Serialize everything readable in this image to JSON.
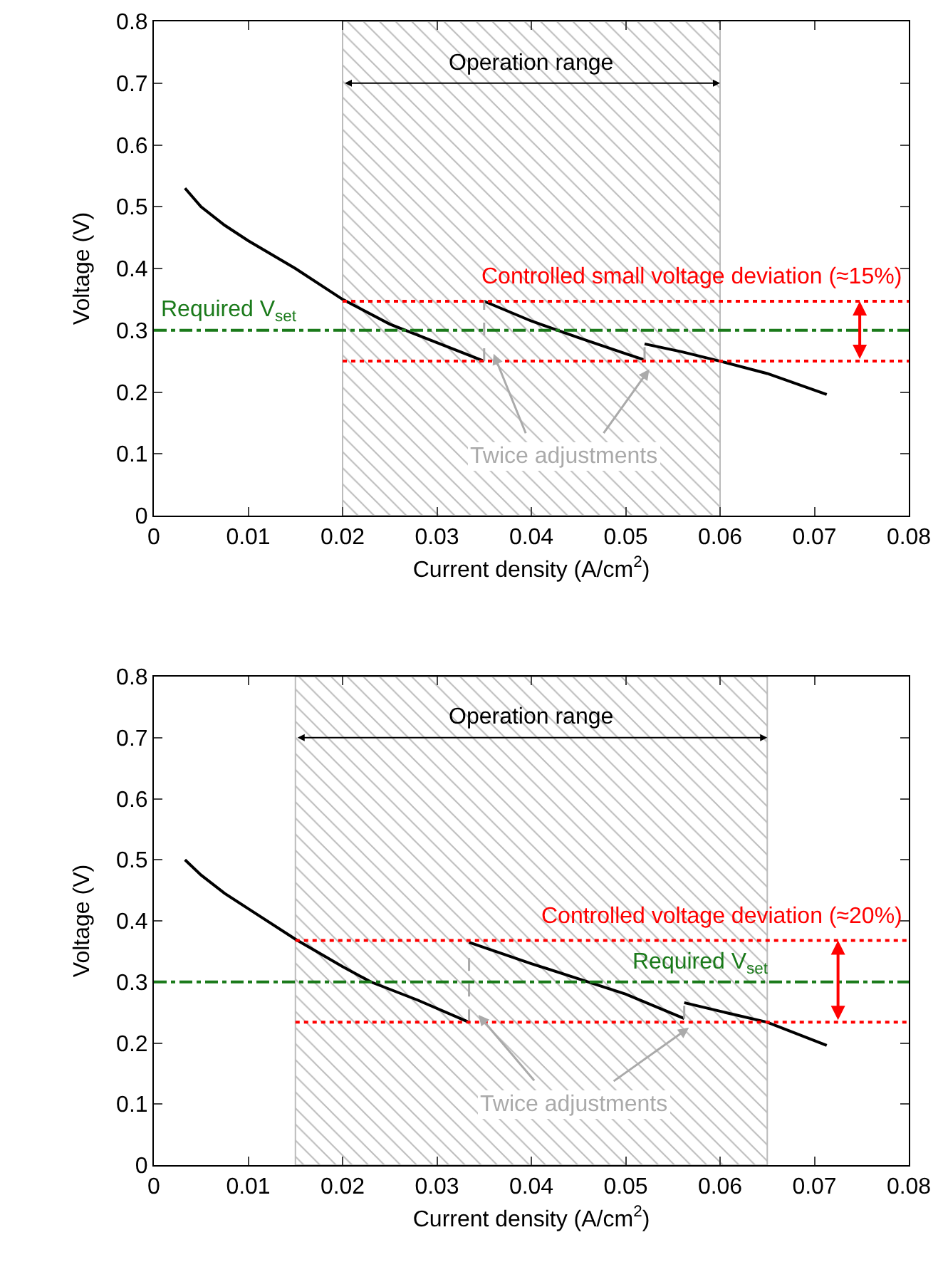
{
  "chart_data": [
    {
      "type": "line",
      "xlabel": "Current density (A/cm$^{2}$)",
      "ylabel": "Voltage (V)",
      "xlim": [
        0,
        0.08
      ],
      "xticks": [
        0,
        0.01,
        0.02,
        0.03,
        0.04,
        0.05,
        0.06,
        0.07,
        0.08
      ],
      "ylim": [
        0,
        0.8
      ],
      "yticks": [
        0,
        0.1,
        0.2,
        0.3,
        0.4,
        0.5,
        0.6,
        0.7,
        0.8
      ],
      "grid": false,
      "marker": "none",
      "series": [
        {
          "color": "#000000",
          "x": [
            0.0033,
            0.005,
            0.0075,
            0.01,
            0.015,
            0.02,
            0.025,
            0.03,
            0.035
          ],
          "values": [
            0.53,
            0.5,
            0.47,
            0.445,
            0.4,
            0.35,
            0.31,
            0.28,
            0.25
          ]
        },
        {
          "color": "#000000",
          "x": [
            0.035,
            0.04,
            0.045,
            0.05,
            0.052
          ],
          "values": [
            0.347,
            0.315,
            0.288,
            0.262,
            0.252
          ]
        },
        {
          "color": "#000000",
          "x": [
            0.052,
            0.056,
            0.06,
            0.065,
            0.0713
          ],
          "values": [
            0.278,
            0.265,
            0.25,
            0.23,
            0.196
          ]
        },
        {
          "color": "#aaaaaa",
          "line_style": "dashed",
          "x": [
            0.035,
            0.035,
            null,
            0.052,
            0.052
          ],
          "values": [
            0.25,
            0.347,
            null,
            0.252,
            0.278
          ]
        }
      ],
      "bands": [
        {
          "axis": "x",
          "from": 0.02,
          "to": 0.06,
          "label": "Operation range",
          "color": "#bbbbbb"
        }
      ],
      "ref_lines": [
        {
          "axis": "y",
          "value": 0.3,
          "label": "Required V$_{set}$",
          "color": "#1a7a1a",
          "line_style": "dashdot"
        },
        {
          "axis": "y",
          "value": 0.347,
          "label": null,
          "color": "#ff0000",
          "line_style": "dotted"
        },
        {
          "axis": "y",
          "value": 0.25,
          "label": null,
          "color": "#ff0000",
          "line_style": "dotted"
        }
      ],
      "annotations": [
        {
          "text": "Controlled small voltage deviation (≈15%)",
          "x": 0.0748,
          "y": 0.347
        },
        {
          "text": "Twice adjustments",
          "x": 0.035,
          "y": 0.25
        }
      ]
    },
    {
      "type": "line",
      "xlabel": "Current density (A/cm$^{2}$)",
      "ylabel": "Voltage (V)",
      "xlim": [
        0,
        0.08
      ],
      "xticks": [
        0,
        0.01,
        0.02,
        0.03,
        0.04,
        0.05,
        0.06,
        0.07,
        0.08
      ],
      "ylim": [
        0,
        0.8
      ],
      "yticks": [
        0,
        0.1,
        0.2,
        0.3,
        0.4,
        0.5,
        0.6,
        0.7,
        0.8
      ],
      "grid": false,
      "marker": "none",
      "series": [
        {
          "color": "#000000",
          "x": [
            0.0033,
            0.005,
            0.0075,
            0.01,
            0.015,
            0.02,
            0.023,
            0.028,
            0.0334
          ],
          "values": [
            0.5,
            0.475,
            0.445,
            0.42,
            0.37,
            0.325,
            0.3,
            0.27,
            0.234
          ]
        },
        {
          "color": "#000000",
          "x": [
            0.0334,
            0.04,
            0.045,
            0.05,
            0.0562
          ],
          "values": [
            0.365,
            0.33,
            0.305,
            0.28,
            0.24
          ]
        },
        {
          "color": "#000000",
          "x": [
            0.0562,
            0.06,
            0.065,
            0.0713
          ],
          "values": [
            0.266,
            0.252,
            0.234,
            0.196
          ]
        },
        {
          "color": "#aaaaaa",
          "line_style": "dashed",
          "x": [
            0.0334,
            0.0334,
            null,
            0.0562,
            0.0562
          ],
          "values": [
            0.234,
            0.34,
            null,
            0.24,
            0.266
          ]
        }
      ],
      "bands": [
        {
          "axis": "x",
          "from": 0.015,
          "to": 0.065,
          "label": "Operation range",
          "color": "#bbbbbb"
        }
      ],
      "ref_lines": [
        {
          "axis": "y",
          "value": 0.3,
          "label": "Required V$_{set}$",
          "color": "#1a7a1a",
          "line_style": "dashdot"
        },
        {
          "axis": "y",
          "value": 0.368,
          "label": null,
          "color": "#ff0000",
          "line_style": "dotted"
        },
        {
          "axis": "y",
          "value": 0.234,
          "label": null,
          "color": "#ff0000",
          "line_style": "dotted"
        }
      ],
      "annotations": [
        {
          "text": "Controlled voltage deviation (≈20%)",
          "x": 0.0725,
          "y": 0.368
        },
        {
          "text": "Twice adjustments",
          "x": 0.0334,
          "y": 0.234
        }
      ]
    }
  ]
}
